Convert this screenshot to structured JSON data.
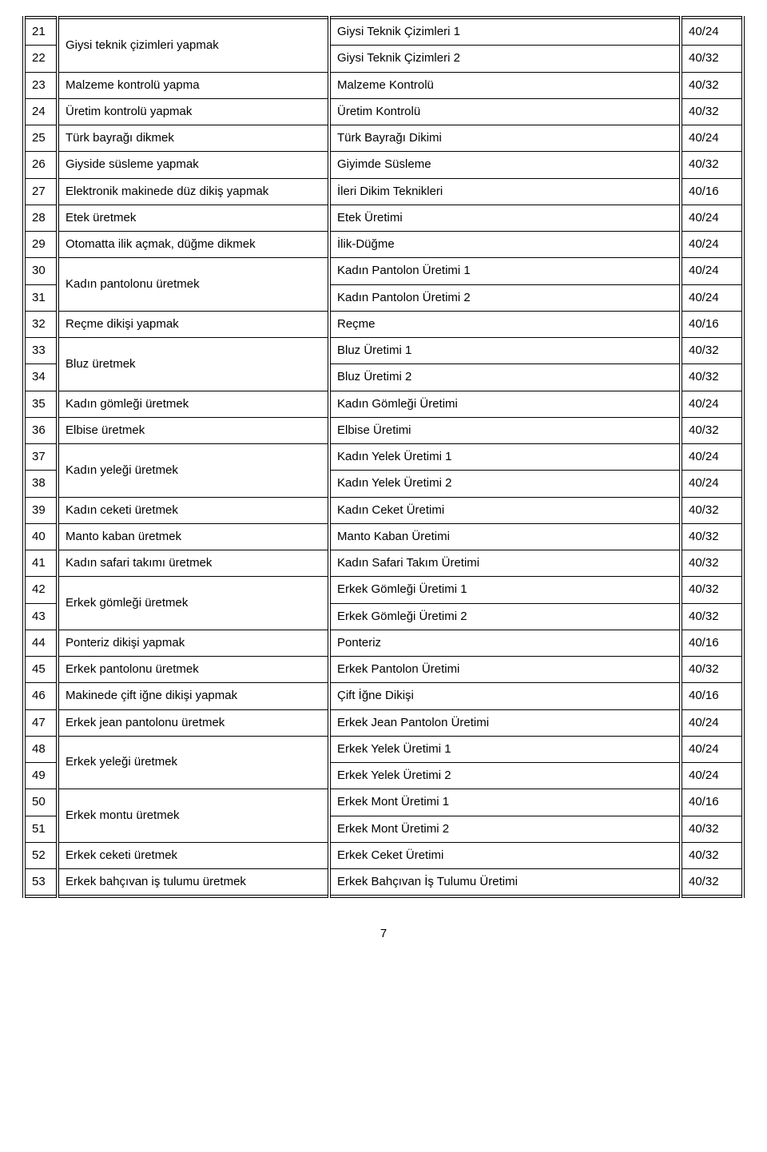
{
  "pageNumber": "7",
  "rows": [
    {
      "n": "21",
      "task": "Giysi teknik çizimleri yapmak",
      "module": "Giysi Teknik Çizimleri 1",
      "code": "40/24",
      "taskSpan": 2
    },
    {
      "n": "22",
      "task": "",
      "module": "Giysi Teknik Çizimleri 2",
      "code": "40/32"
    },
    {
      "n": "23",
      "task": "Malzeme kontrolü yapma",
      "module": "Malzeme Kontrolü",
      "code": "40/32",
      "taskSpan": 1
    },
    {
      "n": "24",
      "task": "Üretim kontrolü yapmak",
      "module": "Üretim Kontrolü",
      "code": "40/32",
      "taskSpan": 1
    },
    {
      "n": "25",
      "task": "Türk bayrağı dikmek",
      "module": "Türk Bayrağı Dikimi",
      "code": "40/24",
      "taskSpan": 1
    },
    {
      "n": "26",
      "task": "Giyside süsleme yapmak",
      "module": "Giyimde Süsleme",
      "code": "40/32",
      "taskSpan": 1
    },
    {
      "n": "27",
      "task": "Elektronik makinede düz dikiş yapmak",
      "module": "İleri Dikim Teknikleri",
      "code": "40/16",
      "taskSpan": 1
    },
    {
      "n": "28",
      "task": "Etek üretmek",
      "module": "Etek Üretimi",
      "code": "40/24",
      "taskSpan": 1
    },
    {
      "n": "29",
      "task": "Otomatta ilik açmak, düğme dikmek",
      "module": "İlik-Düğme",
      "code": "40/24",
      "taskSpan": 1
    },
    {
      "n": "30",
      "task": "Kadın pantolonu üretmek",
      "module": "Kadın Pantolon Üretimi 1",
      "code": "40/24",
      "taskSpan": 2
    },
    {
      "n": "31",
      "task": "",
      "module": "Kadın Pantolon Üretimi 2",
      "code": "40/24"
    },
    {
      "n": "32",
      "task": "Reçme dikişi yapmak",
      "module": "Reçme",
      "code": "40/16",
      "taskSpan": 1
    },
    {
      "n": "33",
      "task": "Bluz üretmek",
      "module": "Bluz Üretimi 1",
      "code": "40/32",
      "taskSpan": 2
    },
    {
      "n": "34",
      "task": "",
      "module": "Bluz Üretimi 2",
      "code": "40/32"
    },
    {
      "n": "35",
      "task": "Kadın gömleği üretmek",
      "module": "Kadın Gömleği Üretimi",
      "code": "40/24",
      "taskSpan": 1
    },
    {
      "n": "36",
      "task": "Elbise üretmek",
      "module": "Elbise Üretimi",
      "code": "40/32",
      "taskSpan": 1
    },
    {
      "n": "37",
      "task": "Kadın yeleği üretmek",
      "module": "Kadın Yelek Üretimi 1",
      "code": "40/24",
      "taskSpan": 2
    },
    {
      "n": "38",
      "task": "",
      "module": "Kadın Yelek Üretimi 2",
      "code": "40/24"
    },
    {
      "n": "39",
      "task": "Kadın ceketi üretmek",
      "module": "Kadın Ceket Üretimi",
      "code": "40/32",
      "taskSpan": 1
    },
    {
      "n": "40",
      "task": "Manto kaban üretmek",
      "module": "Manto Kaban Üretimi",
      "code": "40/32",
      "taskSpan": 1
    },
    {
      "n": "41",
      "task": "Kadın safari takımı üretmek",
      "module": "Kadın Safari Takım Üretimi",
      "code": "40/32",
      "taskSpan": 1
    },
    {
      "n": "42",
      "task": "Erkek gömleği üretmek",
      "module": "Erkek Gömleği Üretimi 1",
      "code": "40/32",
      "taskSpan": 2
    },
    {
      "n": "43",
      "task": "",
      "module": "Erkek Gömleği Üretimi 2",
      "code": "40/32"
    },
    {
      "n": "44",
      "task": "Ponteriz dikişi yapmak",
      "module": "Ponteriz",
      "code": "40/16",
      "taskSpan": 1
    },
    {
      "n": "45",
      "task": "Erkek pantolonu üretmek",
      "module": "Erkek Pantolon Üretimi",
      "code": "40/32",
      "taskSpan": 1
    },
    {
      "n": "46",
      "task": "Makinede çift iğne dikişi yapmak",
      "module": "Çift İğne Dikişi",
      "code": "40/16",
      "taskSpan": 1
    },
    {
      "n": "47",
      "task": "Erkek jean pantolonu üretmek",
      "module": "Erkek Jean Pantolon Üretimi",
      "code": "40/24",
      "taskSpan": 1
    },
    {
      "n": "48",
      "task": "Erkek yeleği üretmek",
      "module": "Erkek Yelek Üretimi 1",
      "code": "40/24",
      "taskSpan": 2
    },
    {
      "n": "49",
      "task": "",
      "module": "Erkek Yelek Üretimi 2",
      "code": "40/24"
    },
    {
      "n": "50",
      "task": "Erkek montu üretmek",
      "module": "Erkek Mont Üretimi 1",
      "code": "40/16",
      "taskSpan": 2
    },
    {
      "n": "51",
      "task": "",
      "module": "Erkek Mont Üretimi 2",
      "code": "40/32"
    },
    {
      "n": "52",
      "task": "Erkek ceketi üretmek",
      "module": "Erkek Ceket Üretimi",
      "code": "40/32",
      "taskSpan": 1
    },
    {
      "n": "53",
      "task": "Erkek bahçıvan iş tulumu üretmek",
      "module": "Erkek Bahçıvan İş Tulumu Üretimi",
      "code": "40/32",
      "taskSpan": 1
    }
  ]
}
